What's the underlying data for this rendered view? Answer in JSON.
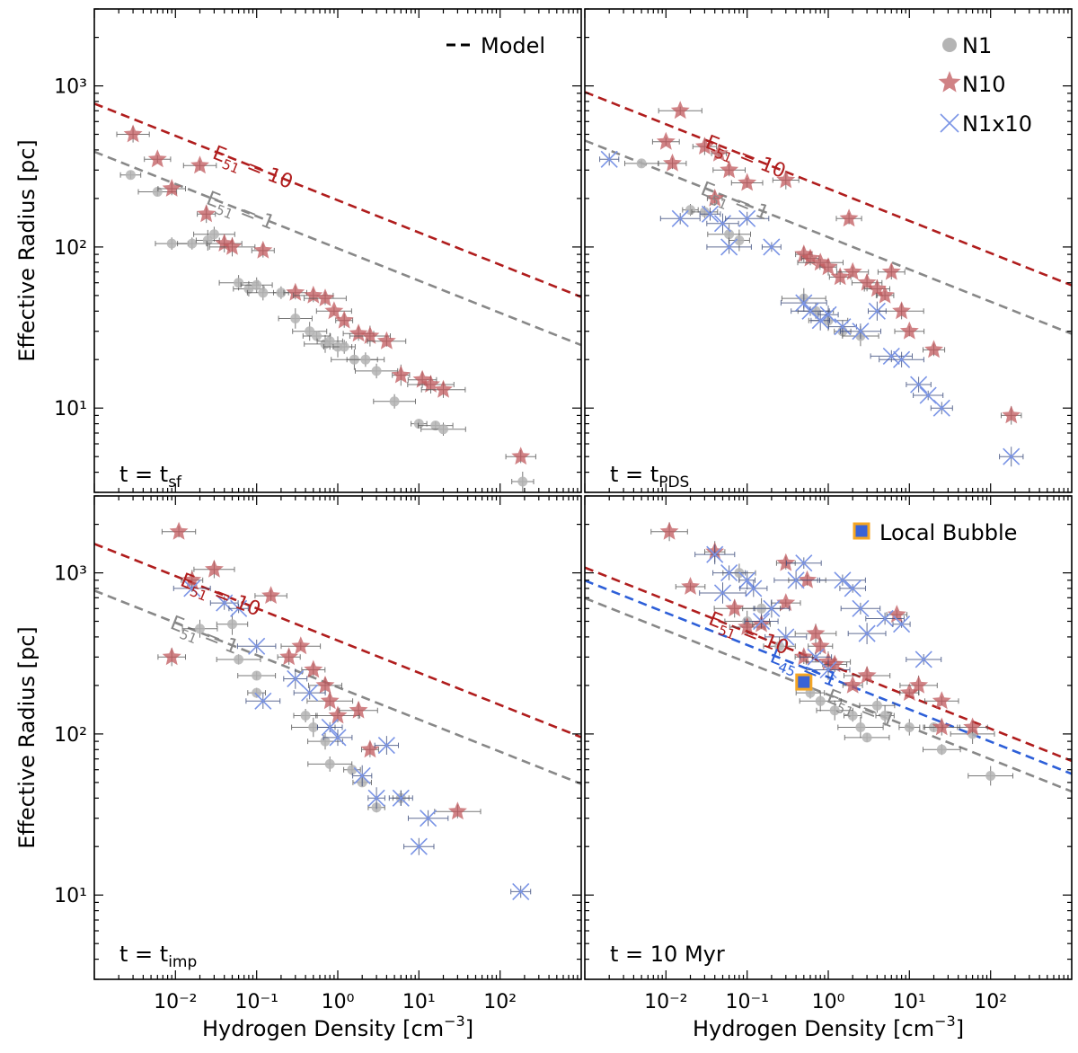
{
  "figure": {
    "ylabel": "Effective Radius [pc]",
    "xlabel_main": "Hydrogen Density [cm",
    "xlabel_exp": "−3",
    "xlabel_close": "]",
    "colors": {
      "N1": "#b4b4b4",
      "N10": "#c0585c",
      "N1x10": "#7a94e6",
      "red_line": "#b01d1d",
      "gray_line": "#888888",
      "blue_line": "#2d5fd8",
      "local_bubble_edge": "#f5a623",
      "local_bubble_fill": "#3a63d6"
    }
  },
  "chart_data": [
    {
      "type": "scatter",
      "panel": "top-left",
      "time_label": {
        "main": "t = t",
        "sub": "sf"
      },
      "xscale": "log",
      "yscale": "log",
      "xlim": [
        0.001,
        1000
      ],
      "ylim": [
        3,
        3000
      ],
      "x_ticks": [
        "10⁻²",
        "10⁻¹",
        "10⁰",
        "10¹",
        "10²"
      ],
      "y_ticks": [
        "10¹",
        "10²",
        "10³"
      ],
      "legend": {
        "position": "top-right",
        "entries": [
          {
            "marker": "dashed-line",
            "label": "Model"
          }
        ]
      },
      "model_lines": [
        {
          "name": "red",
          "label_base": "E",
          "label_sub": "51",
          "label_value": " = 10",
          "amp": 195,
          "slope": -0.2,
          "label_x": 0.03
        },
        {
          "name": "gray",
          "label_base": "E",
          "label_sub": "51",
          "label_value": " = 1",
          "amp": 98,
          "slope": -0.2,
          "label_x": 0.025
        }
      ],
      "series": [
        {
          "name": "N1",
          "points": [
            [
              0.0028,
              280
            ],
            [
              0.006,
              220
            ],
            [
              0.009,
              105
            ],
            [
              0.016,
              105
            ],
            [
              0.025,
              110
            ],
            [
              0.03,
              120
            ],
            [
              0.06,
              60
            ],
            [
              0.08,
              55
            ],
            [
              0.1,
              58
            ],
            [
              0.12,
              52
            ],
            [
              0.2,
              52
            ],
            [
              0.3,
              36
            ],
            [
              0.45,
              30
            ],
            [
              0.55,
              28
            ],
            [
              0.7,
              25
            ],
            [
              0.8,
              26
            ],
            [
              1.0,
              24
            ],
            [
              1.2,
              24
            ],
            [
              1.6,
              20
            ],
            [
              2.2,
              20
            ],
            [
              3.0,
              17
            ],
            [
              5.0,
              11
            ],
            [
              10,
              8
            ],
            [
              16,
              7.8
            ],
            [
              20,
              7.4
            ],
            [
              190,
              3.5
            ]
          ]
        },
        {
          "name": "N10",
          "points": [
            [
              0.003,
              500
            ],
            [
              0.006,
              350
            ],
            [
              0.009,
              230
            ],
            [
              0.02,
              320
            ],
            [
              0.024,
              160
            ],
            [
              0.04,
              105
            ],
            [
              0.05,
              100
            ],
            [
              0.12,
              95
            ],
            [
              0.3,
              52
            ],
            [
              0.5,
              50
            ],
            [
              0.7,
              48
            ],
            [
              0.9,
              40
            ],
            [
              1.2,
              35
            ],
            [
              1.8,
              29
            ],
            [
              2.5,
              28
            ],
            [
              4,
              26
            ],
            [
              6,
              16
            ],
            [
              11,
              15
            ],
            [
              14,
              14
            ],
            [
              20,
              13
            ],
            [
              180,
              5
            ]
          ]
        }
      ]
    },
    {
      "type": "scatter",
      "panel": "top-right",
      "time_label": {
        "main": "t = t",
        "sub": "PDS"
      },
      "xscale": "log",
      "yscale": "log",
      "xlim": [
        0.001,
        1000
      ],
      "ylim": [
        3,
        3000
      ],
      "x_ticks": [
        "10⁻²",
        "10⁻¹",
        "10⁰",
        "10¹",
        "10²"
      ],
      "y_ticks": [
        "10¹",
        "10²",
        "10³"
      ],
      "legend": {
        "position": "top-right",
        "entries": [
          {
            "marker": "circle",
            "label": "N1"
          },
          {
            "marker": "star",
            "label": "N10"
          },
          {
            "marker": "x",
            "label": "N1x10"
          }
        ]
      },
      "model_lines": [
        {
          "name": "red",
          "label_base": "E",
          "label_sub": "51",
          "label_value": " = 10",
          "amp": 230,
          "slope": -0.2,
          "label_x": 0.032
        },
        {
          "name": "gray",
          "label_base": "E",
          "label_sub": "51",
          "label_value": " = 1",
          "amp": 115,
          "slope": -0.2,
          "label_x": 0.028
        }
      ],
      "series": [
        {
          "name": "N1",
          "points": [
            [
              0.005,
              330
            ],
            [
              0.02,
              170
            ],
            [
              0.03,
              165
            ],
            [
              0.06,
              120
            ],
            [
              0.08,
              110
            ],
            [
              0.5,
              48
            ],
            [
              0.7,
              40
            ],
            [
              1.0,
              35
            ],
            [
              1.5,
              30
            ],
            [
              2.5,
              28
            ]
          ]
        },
        {
          "name": "N10",
          "points": [
            [
              0.01,
              450
            ],
            [
              0.015,
              700
            ],
            [
              0.012,
              330
            ],
            [
              0.03,
              420
            ],
            [
              0.045,
              380
            ],
            [
              0.04,
              200
            ],
            [
              0.06,
              300
            ],
            [
              0.1,
              250
            ],
            [
              0.3,
              260
            ],
            [
              1.8,
              150
            ],
            [
              0.5,
              90
            ],
            [
              0.6,
              85
            ],
            [
              0.8,
              80
            ],
            [
              1.0,
              75
            ],
            [
              1.4,
              65
            ],
            [
              2,
              70
            ],
            [
              3,
              60
            ],
            [
              4,
              55
            ],
            [
              5,
              50
            ],
            [
              6,
              70
            ],
            [
              8,
              40
            ],
            [
              10,
              30
            ],
            [
              20,
              23
            ],
            [
              180,
              9
            ]
          ]
        },
        {
          "name": "N1x10",
          "points": [
            [
              0.002,
              350
            ],
            [
              0.015,
              150
            ],
            [
              0.035,
              160
            ],
            [
              0.05,
              140
            ],
            [
              0.1,
              150
            ],
            [
              0.06,
              100
            ],
            [
              0.2,
              100
            ],
            [
              0.5,
              45
            ],
            [
              0.6,
              40
            ],
            [
              0.8,
              35
            ],
            [
              1.0,
              38
            ],
            [
              1.5,
              32
            ],
            [
              2.5,
              30
            ],
            [
              4,
              40
            ],
            [
              6,
              21
            ],
            [
              8,
              20
            ],
            [
              13,
              14
            ],
            [
              17,
              12
            ],
            [
              25,
              10
            ],
            [
              180,
              5
            ]
          ]
        }
      ]
    },
    {
      "type": "scatter",
      "panel": "bottom-left",
      "time_label": {
        "main": "t = t",
        "sub": "imp"
      },
      "xscale": "log",
      "yscale": "log",
      "xlim": [
        0.001,
        1000
      ],
      "ylim": [
        3,
        3000
      ],
      "x_ticks": [
        "10⁻²",
        "10⁻¹",
        "10⁰",
        "10¹",
        "10²"
      ],
      "y_ticks": [
        "10¹",
        "10²",
        "10³"
      ],
      "legend": null,
      "model_lines": [
        {
          "name": "red",
          "label_base": "E",
          "label_sub": "51",
          "label_value": " = 10",
          "amp": 380,
          "slope": -0.2,
          "label_x": 0.012
        },
        {
          "name": "gray",
          "label_base": "E",
          "label_sub": "51",
          "label_value": " = 1",
          "amp": 195,
          "slope": -0.2,
          "label_x": 0.009
        }
      ],
      "series": [
        {
          "name": "N1",
          "points": [
            [
              0.02,
              450
            ],
            [
              0.05,
              480
            ],
            [
              0.06,
              290
            ],
            [
              0.1,
              230
            ],
            [
              0.1,
              180
            ],
            [
              0.4,
              130
            ],
            [
              0.5,
              110
            ],
            [
              0.7,
              90
            ],
            [
              0.8,
              65
            ],
            [
              1.5,
              60
            ],
            [
              2.0,
              50
            ],
            [
              3,
              35
            ],
            [
              6,
              40
            ]
          ]
        },
        {
          "name": "N10",
          "points": [
            [
              0.011,
              1800
            ],
            [
              0.009,
              300
            ],
            [
              0.016,
              900
            ],
            [
              0.03,
              1050
            ],
            [
              0.15,
              720
            ],
            [
              0.35,
              350
            ],
            [
              0.25,
              300
            ],
            [
              0.5,
              250
            ],
            [
              0.7,
              200
            ],
            [
              0.8,
              160
            ],
            [
              1.0,
              130
            ],
            [
              1.8,
              140
            ],
            [
              2.5,
              80
            ],
            [
              30,
              33
            ]
          ]
        },
        {
          "name": "N1x10",
          "points": [
            [
              0.016,
              800
            ],
            [
              0.04,
              650
            ],
            [
              0.06,
              600
            ],
            [
              0.1,
              350
            ],
            [
              0.12,
              160
            ],
            [
              0.3,
              220
            ],
            [
              0.45,
              180
            ],
            [
              0.8,
              110
            ],
            [
              1.0,
              95
            ],
            [
              2.0,
              55
            ],
            [
              3.0,
              40
            ],
            [
              4,
              85
            ],
            [
              6,
              40
            ],
            [
              10,
              20
            ],
            [
              13,
              30
            ],
            [
              180,
              10.5
            ]
          ]
        }
      ]
    },
    {
      "type": "scatter",
      "panel": "bottom-right",
      "time_label": {
        "main": "t = 10 Myr",
        "sub": ""
      },
      "xscale": "log",
      "yscale": "log",
      "xlim": [
        0.001,
        1000
      ],
      "ylim": [
        3,
        3000
      ],
      "x_ticks": [
        "10⁻²",
        "10⁻¹",
        "10⁰",
        "10¹",
        "10²"
      ],
      "y_ticks": [
        "10¹",
        "10²",
        "10³"
      ],
      "legend": {
        "position": "top-right",
        "entries": [
          {
            "marker": "square",
            "label": "Local Bubble"
          }
        ]
      },
      "model_lines": [
        {
          "name": "red",
          "label_base": "E",
          "label_sub": "51",
          "label_value": " = 10",
          "amp": 271,
          "slope": -0.2,
          "label_x": 0.035
        },
        {
          "name": "blue",
          "label_base": "L",
          "label_sub": "45",
          "label_value": " = 1",
          "amp": 225,
          "slope": -0.2,
          "label_x": 0.2
        },
        {
          "name": "gray",
          "label_base": "E",
          "label_sub": "51",
          "label_value": " = 1",
          "amp": 175,
          "slope": -0.2,
          "label_x": 1.0
        }
      ],
      "highlight": {
        "name": "Local Bubble",
        "x": 0.5,
        "y": 210
      },
      "series": [
        {
          "name": "N1",
          "points": [
            [
              0.08,
              1000
            ],
            [
              0.1,
              500
            ],
            [
              0.15,
              600
            ],
            [
              0.25,
              350
            ],
            [
              0.6,
              180
            ],
            [
              0.8,
              160
            ],
            [
              1.2,
              140
            ],
            [
              2.0,
              130
            ],
            [
              2.5,
              110
            ],
            [
              3.0,
              95
            ],
            [
              4,
              150
            ],
            [
              5,
              130
            ],
            [
              10,
              110
            ],
            [
              20,
              110
            ],
            [
              25,
              80
            ],
            [
              60,
              100
            ],
            [
              100,
              55
            ]
          ]
        },
        {
          "name": "N10",
          "points": [
            [
              0.011,
              1800
            ],
            [
              0.02,
              820
            ],
            [
              0.04,
              1350
            ],
            [
              0.07,
              600
            ],
            [
              0.1,
              460
            ],
            [
              0.15,
              480
            ],
            [
              0.3,
              1150
            ],
            [
              0.3,
              650
            ],
            [
              0.5,
              300
            ],
            [
              0.55,
              900
            ],
            [
              0.7,
              420
            ],
            [
              0.8,
              350
            ],
            [
              1.0,
              280
            ],
            [
              1.2,
              270
            ],
            [
              2.0,
              200
            ],
            [
              3.0,
              230
            ],
            [
              7,
              550
            ],
            [
              10,
              180
            ],
            [
              13,
              200
            ],
            [
              25,
              160
            ],
            [
              25,
              110
            ],
            [
              60,
              110
            ]
          ]
        },
        {
          "name": "N1x10",
          "points": [
            [
              0.04,
              1300
            ],
            [
              0.06,
              1000
            ],
            [
              0.1,
              900
            ],
            [
              0.12,
              800
            ],
            [
              0.05,
              750
            ],
            [
              0.15,
              500
            ],
            [
              0.2,
              600
            ],
            [
              0.3,
              400
            ],
            [
              0.4,
              900
            ],
            [
              0.5,
              1150
            ],
            [
              0.7,
              300
            ],
            [
              1.0,
              250
            ],
            [
              1.5,
              900
            ],
            [
              2,
              800
            ],
            [
              2.5,
              600
            ],
            [
              3,
              420
            ],
            [
              5,
              520
            ],
            [
              8,
              480
            ],
            [
              15,
              290
            ]
          ]
        }
      ]
    }
  ]
}
